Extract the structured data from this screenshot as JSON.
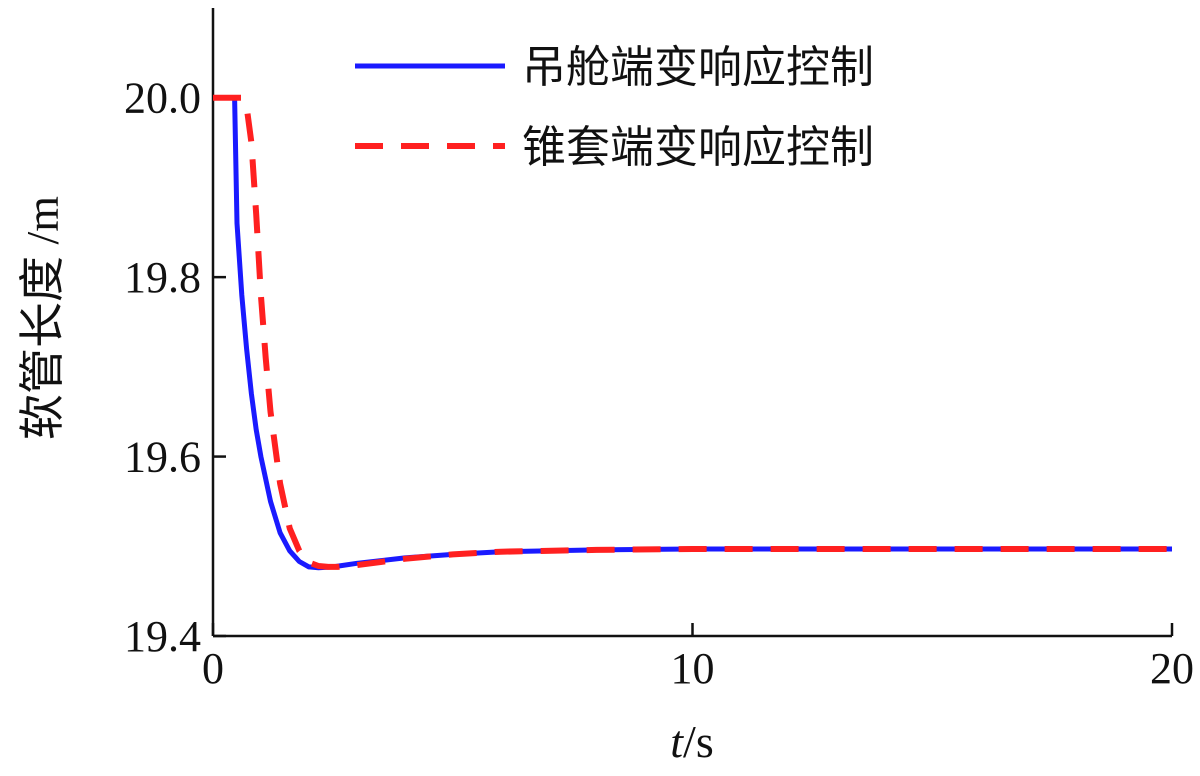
{
  "chart_data": {
    "type": "line",
    "title": "",
    "xlabel": {
      "italic": "t",
      "rest": "/s"
    },
    "ylabel": "软管长度 /m",
    "xlim": [
      0,
      20
    ],
    "ylim": [
      19.4,
      20.1
    ],
    "x_ticks": [
      0,
      10,
      20
    ],
    "x_tick_labels": [
      "0",
      "10",
      "20"
    ],
    "y_ticks": [
      19.4,
      19.6,
      19.8,
      20.0
    ],
    "y_tick_labels": [
      "19.4",
      "19.6",
      "19.8",
      "20.0"
    ],
    "grid": false,
    "legend_position": "top-center",
    "series": [
      {
        "name": "吊舱端变响应控制",
        "color": "#1a1aff",
        "style": "solid",
        "x": [
          0,
          0.45,
          0.5,
          0.6,
          0.7,
          0.8,
          0.9,
          1.0,
          1.2,
          1.4,
          1.6,
          1.8,
          2.0,
          2.2,
          2.5,
          3.0,
          4.0,
          5.0,
          6.0,
          8.0,
          10.0,
          12.0,
          15.0,
          20.0
        ],
        "y": [
          20.0,
          20.0,
          19.86,
          19.78,
          19.72,
          19.67,
          19.63,
          19.6,
          19.55,
          19.515,
          19.495,
          19.483,
          19.477,
          19.476,
          19.477,
          19.481,
          19.487,
          19.491,
          19.494,
          19.496,
          19.497,
          19.497,
          19.497,
          19.497
        ]
      },
      {
        "name": "锥套端变响应控制",
        "color": "#ff2020",
        "style": "dashed",
        "x": [
          0,
          0.6,
          0.7,
          0.8,
          0.9,
          1.0,
          1.1,
          1.2,
          1.4,
          1.6,
          1.8,
          2.0,
          2.2,
          2.4,
          2.6,
          3.0,
          4.0,
          5.0,
          6.0,
          8.0,
          10.0,
          12.0,
          15.0,
          20.0
        ],
        "y": [
          20.0,
          20.0,
          19.99,
          19.95,
          19.87,
          19.78,
          19.71,
          19.65,
          19.57,
          19.52,
          19.495,
          19.482,
          19.478,
          19.477,
          19.477,
          19.479,
          19.486,
          19.491,
          19.494,
          19.496,
          19.497,
          19.497,
          19.497,
          19.497
        ]
      }
    ]
  }
}
